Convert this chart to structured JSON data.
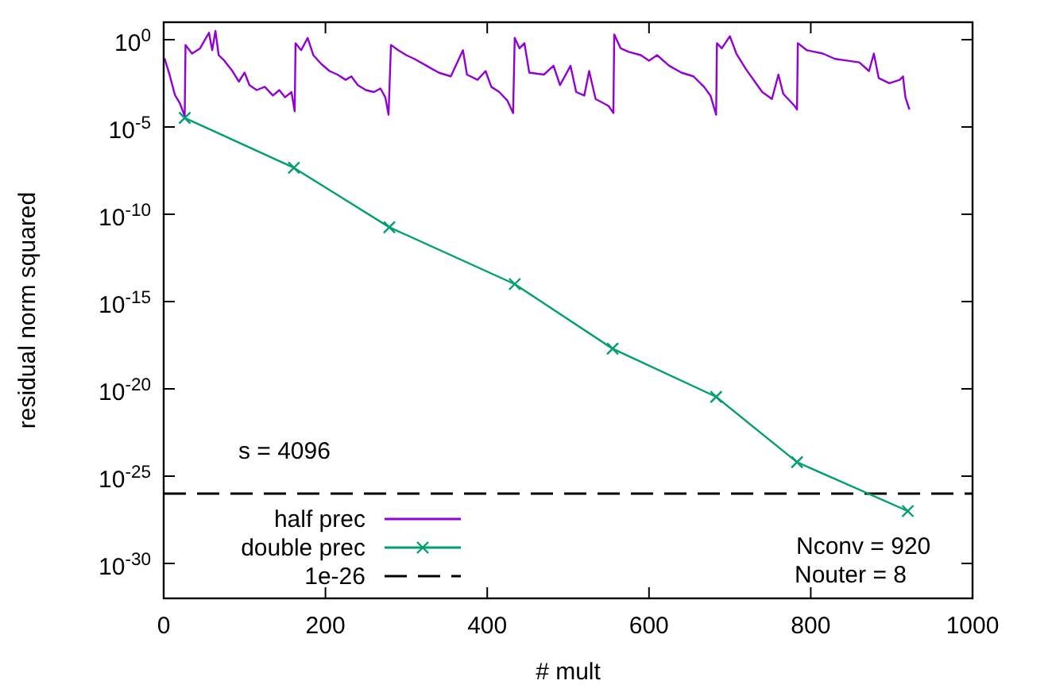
{
  "chart_data": {
    "type": "line",
    "xlabel": "# mult",
    "ylabel": "residual norm squared",
    "log": "y",
    "xlim": [
      0,
      1000
    ],
    "xticks": [
      0,
      200,
      400,
      600,
      800,
      1000
    ],
    "ylim": [
      1e-32,
      10
    ],
    "yticks": [
      {
        "value": 1e-30,
        "label": "10$^{-30}$"
      },
      {
        "value": 1e-25,
        "label": "10$^{-25}$"
      },
      {
        "value": 1e-20,
        "label": "10$^{-20}$"
      },
      {
        "value": 1e-15,
        "label": "10$^{-15}$"
      },
      {
        "value": 1e-10,
        "label": "10$^{-10}$"
      },
      {
        "value": 1e-05,
        "label": "10$^{-5}$"
      },
      {
        "value": 1,
        "label": "10$^{0}$"
      }
    ],
    "grid": false,
    "legend": "bottom left",
    "series": [
      {
        "name": "half prec",
        "color": "#9400d3",
        "marker": "none",
        "x": [
          1,
          7,
          14,
          20,
          26,
          27,
          35,
          45,
          56,
          60,
          64,
          68,
          75,
          85,
          93,
          100,
          106,
          115,
          125,
          135,
          143,
          150,
          158,
          162,
          163,
          170,
          178,
          185,
          195,
          205,
          215,
          225,
          232,
          240,
          250,
          260,
          268,
          274,
          278,
          281,
          290,
          300,
          310,
          325,
          340,
          355,
          370,
          375,
          388,
          398,
          405,
          415,
          425,
          432,
          434,
          440,
          446,
          452,
          470,
          482,
          490,
          503,
          510,
          520,
          526,
          534,
          550,
          556,
          557,
          565,
          575,
          590,
          600,
          610,
          625,
          640,
          655,
          668,
          676,
          683,
          684,
          690,
          700,
          708,
          720,
          740,
          752,
          760,
          766,
          780,
          783,
          784,
          795,
          815,
          830,
          845,
          860,
          872,
          878,
          884,
          897,
          910,
          914,
          917,
          922
        ],
        "values": [
          0.087,
          0.011,
          0.00066,
          0.00023,
          4.1e-05,
          0.5,
          0.16,
          0.32,
          2.5,
          0.25,
          3.2,
          0.13,
          0.063,
          0.016,
          0.004,
          0.013,
          0.0025,
          0.0013,
          0.002,
          0.00063,
          0.0013,
          0.0005,
          0.001,
          7.9e-05,
          0.63,
          0.25,
          1.26,
          0.13,
          0.04,
          0.016,
          0.01,
          0.005,
          0.0079,
          0.0025,
          0.0013,
          0.001,
          0.0016,
          0.0005,
          5e-05,
          0.5,
          0.25,
          0.13,
          0.079,
          0.032,
          0.013,
          0.0079,
          0.25,
          0.01,
          0.005,
          0.016,
          0.002,
          0.001,
          0.00032,
          6.3e-05,
          1.26,
          0.32,
          0.63,
          0.013,
          0.01,
          0.032,
          0.0025,
          0.032,
          0.001,
          0.00063,
          0.016,
          0.0004,
          0.00016,
          6.3e-05,
          2.0,
          0.32,
          0.2,
          0.13,
          0.063,
          0.13,
          0.032,
          0.013,
          0.0079,
          0.002,
          0.00063,
          5e-05,
          0.63,
          0.32,
          1.58,
          0.16,
          0.02,
          0.001,
          0.0004,
          0.01,
          0.00079,
          0.00016,
          0.0001,
          0.63,
          0.25,
          0.16,
          0.079,
          0.063,
          0.05,
          0.016,
          0.16,
          0.0063,
          0.0032,
          0.005,
          0.0079,
          0.0005,
          0.0001
        ]
      },
      {
        "name": "double prec",
        "color": "#009e73",
        "marker": "cross",
        "x": [
          26,
          161,
          279,
          434,
          555,
          683,
          783,
          920
        ],
        "values": [
          3.3e-05,
          4.6e-08,
          1.8e-11,
          1e-14,
          2e-18,
          3.5e-21,
          6.3e-25,
          1e-27
        ]
      }
    ],
    "ref_lines": [
      {
        "axis": "y",
        "value": 1e-26,
        "label": "1e-26",
        "color": "#000000",
        "line_style": "dashed"
      }
    ],
    "annotations": [
      "s = 4096",
      "Nconv = 920",
      "Nouter = 8"
    ]
  }
}
